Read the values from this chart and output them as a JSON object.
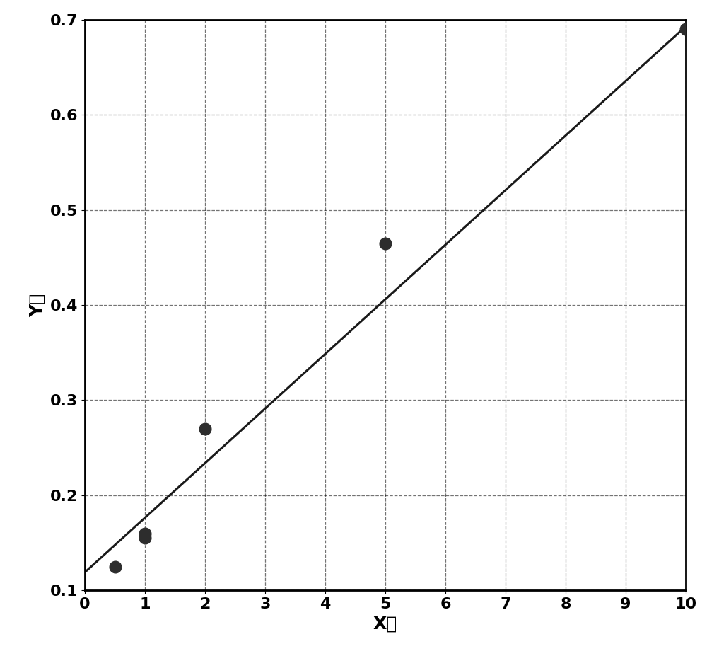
{
  "scatter_x": [
    0.5,
    1.0,
    1.0,
    2.0,
    5.0,
    10.0
  ],
  "scatter_y": [
    0.125,
    0.155,
    0.16,
    0.27,
    0.465,
    0.69
  ],
  "line_x": [
    0.0,
    10.0
  ],
  "line_y": [
    0.119,
    0.693
  ],
  "xlabel": "X値",
  "ylabel": "Y値",
  "xlim": [
    0,
    10
  ],
  "ylim": [
    0.1,
    0.7
  ],
  "xticks": [
    0,
    1,
    2,
    3,
    4,
    5,
    6,
    7,
    8,
    9,
    10
  ],
  "yticks": [
    0.1,
    0.2,
    0.3,
    0.4,
    0.5,
    0.6,
    0.7
  ],
  "marker_color": "#2d2d2d",
  "marker_size": 12,
  "line_color": "#1a1a1a",
  "line_width": 2.2,
  "grid_color": "#000000",
  "grid_linestyle": "--",
  "grid_linewidth": 0.9,
  "grid_alpha": 0.55,
  "background_color": "#ffffff",
  "xlabel_fontsize": 18,
  "ylabel_fontsize": 18,
  "tick_fontsize": 16,
  "tick_fontweight": "bold"
}
